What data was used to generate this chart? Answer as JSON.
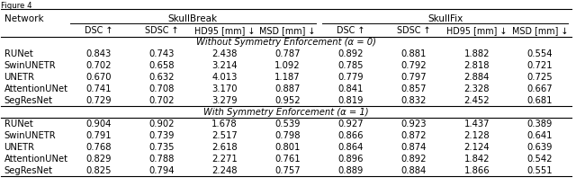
{
  "title": "Figure 4",
  "col_headers": [
    "DSC ↑",
    "SDSC ↑",
    "HD95 [mm] ↓",
    "MSD [mm] ↓",
    "DSC ↑",
    "SDSC ↑",
    "HD95 [mm] ↓",
    "MSD [mm] ↓"
  ],
  "section1_title": "Without Symmetry Enforcement (α = 0)",
  "section2_title": "With Symmetry Enforcement (α = 1)",
  "networks": [
    "RUNet",
    "SwinUNETR",
    "UNETR",
    "AttentionUNet",
    "SegResNet"
  ],
  "section1_data": [
    [
      0.843,
      0.743,
      2.438,
      0.787,
      0.892,
      0.881,
      1.882,
      0.554
    ],
    [
      0.702,
      0.658,
      3.214,
      1.092,
      0.785,
      0.792,
      2.818,
      0.721
    ],
    [
      0.67,
      0.632,
      4.013,
      1.187,
      0.779,
      0.797,
      2.884,
      0.725
    ],
    [
      0.741,
      0.708,
      3.17,
      0.887,
      0.841,
      0.857,
      2.328,
      0.667
    ],
    [
      0.729,
      0.702,
      3.279,
      0.952,
      0.819,
      0.832,
      2.452,
      0.681
    ]
  ],
  "section2_data": [
    [
      0.904,
      0.902,
      1.678,
      0.539,
      0.927,
      0.923,
      1.437,
      0.389
    ],
    [
      0.791,
      0.739,
      2.517,
      0.798,
      0.866,
      0.872,
      2.128,
      0.641
    ],
    [
      0.768,
      0.735,
      2.618,
      0.801,
      0.864,
      0.874,
      2.124,
      0.639
    ],
    [
      0.829,
      0.788,
      2.271,
      0.761,
      0.896,
      0.892,
      1.842,
      0.542
    ],
    [
      0.825,
      0.794,
      2.248,
      0.757,
      0.889,
      0.884,
      1.866,
      0.551
    ]
  ],
  "background_color": "#ffffff",
  "text_color": "#000000",
  "font_size": 7.2,
  "header_font_size": 7.5,
  "section_font_size": 7.2
}
